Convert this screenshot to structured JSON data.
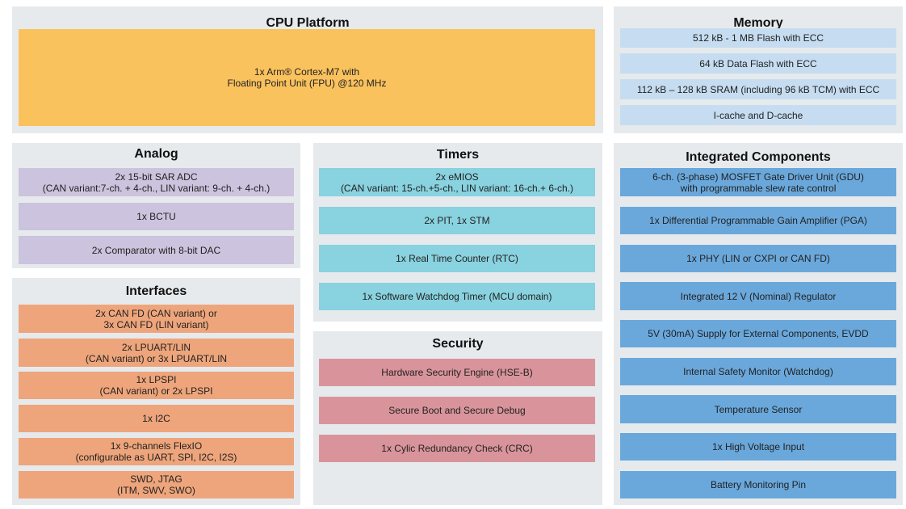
{
  "sections": [
    {
      "title": "CPU Platform",
      "blocks": [
        [
          "1x Arm® Cortex-M7 with",
          "Floating Point Unit (FPU) @120 MHz"
        ]
      ]
    },
    {
      "title": "Memory",
      "blocks": [
        [
          "512 kB - 1 MB Flash with ECC"
        ],
        [
          "64 kB Data Flash with ECC"
        ],
        [
          "112 kB – 128 kB SRAM (including 96 kB TCM) with ECC"
        ],
        [
          "I-cache and D-cache"
        ]
      ]
    },
    {
      "title": "Analog",
      "blocks": [
        [
          "2x 15-bit SAR ADC",
          "(CAN variant:7-ch. + 4-ch., LIN variant: 9-ch. + 4-ch.)"
        ],
        [
          "1x BCTU"
        ],
        [
          "2x Comparator with 8-bit DAC"
        ]
      ]
    },
    {
      "title": "Interfaces",
      "blocks": [
        [
          "2x CAN FD (CAN variant) or",
          "3x CAN FD (LIN variant)"
        ],
        [
          "2x LPUART/LIN",
          "(CAN variant) or 3x LPUART/LIN"
        ],
        [
          "1x LPSPI",
          "(CAN variant) or 2x LPSPI"
        ],
        [
          "1x I2C"
        ],
        [
          "1x 9-channels FlexIO",
          "(configurable as UART, SPI, I2C, I2S)"
        ],
        [
          "SWD, JTAG",
          "(ITM, SWV, SWO)"
        ]
      ]
    },
    {
      "title": "Timers",
      "blocks": [
        [
          "2x eMIOS",
          "(CAN variant: 15-ch.+5-ch., LIN variant: 16-ch.+ 6-ch.)"
        ],
        [
          "2x PIT, 1x STM"
        ],
        [
          "1x Real Time Counter (RTC)"
        ],
        [
          "1x Software Watchdog Timer (MCU domain)"
        ]
      ]
    },
    {
      "title": "Security",
      "blocks": [
        [
          "Hardware Security Engine (HSE-B)"
        ],
        [
          "Secure Boot and Secure Debug"
        ],
        [
          "1x Cylic Redundancy Check (CRC)"
        ]
      ]
    },
    {
      "title": "Integrated Components",
      "blocks": [
        [
          "6-ch. (3-phase) MOSFET Gate Driver Unit (GDU)",
          "with programmable slew rate control"
        ],
        [
          "1x Differential Programmable Gain Amplifier (PGA)"
        ],
        [
          "1x PHY (LIN or CXPI or CAN FD)"
        ],
        [
          "Integrated 12 V (Nominal) Regulator"
        ],
        [
          "5V (30mA) Supply for External Components, EVDD"
        ],
        [
          "Internal Safety Monitor (Watchdog)"
        ],
        [
          "Temperature Sensor"
        ],
        [
          "1x High Voltage Input"
        ],
        [
          "Battery Monitoring Pin"
        ]
      ]
    }
  ]
}
